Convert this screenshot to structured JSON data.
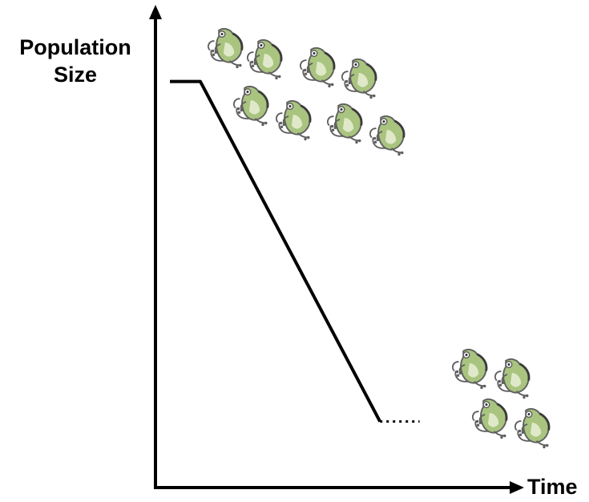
{
  "chart_data": {
    "type": "line",
    "title": "",
    "xlabel": "Time",
    "ylabel": "Population Size",
    "x_ticks": "none",
    "y_ticks": "none",
    "grid": false,
    "legend": "none",
    "xlim": [
      0,
      10
    ],
    "ylim": [
      0,
      10
    ],
    "series": [
      {
        "style": "solid",
        "x": [
          0,
          1.0,
          6.9
        ],
        "y": [
          8.95,
          8.95,
          0.95
        ]
      },
      {
        "style": "dotted",
        "x": [
          6.9,
          8.2
        ],
        "y": [
          0.95,
          0.95
        ]
      }
    ],
    "illustrations": [
      {
        "icon": "frog-icon",
        "group": "many-frogs",
        "count": 8,
        "position": "upper-left"
      },
      {
        "icon": "frog-icon",
        "group": "few-frogs",
        "count": 4,
        "position": "lower-right"
      }
    ],
    "colors": {
      "line": "#000000",
      "frog_fill": "#a9c47f",
      "frog_outline": "#5f5f5f"
    }
  }
}
